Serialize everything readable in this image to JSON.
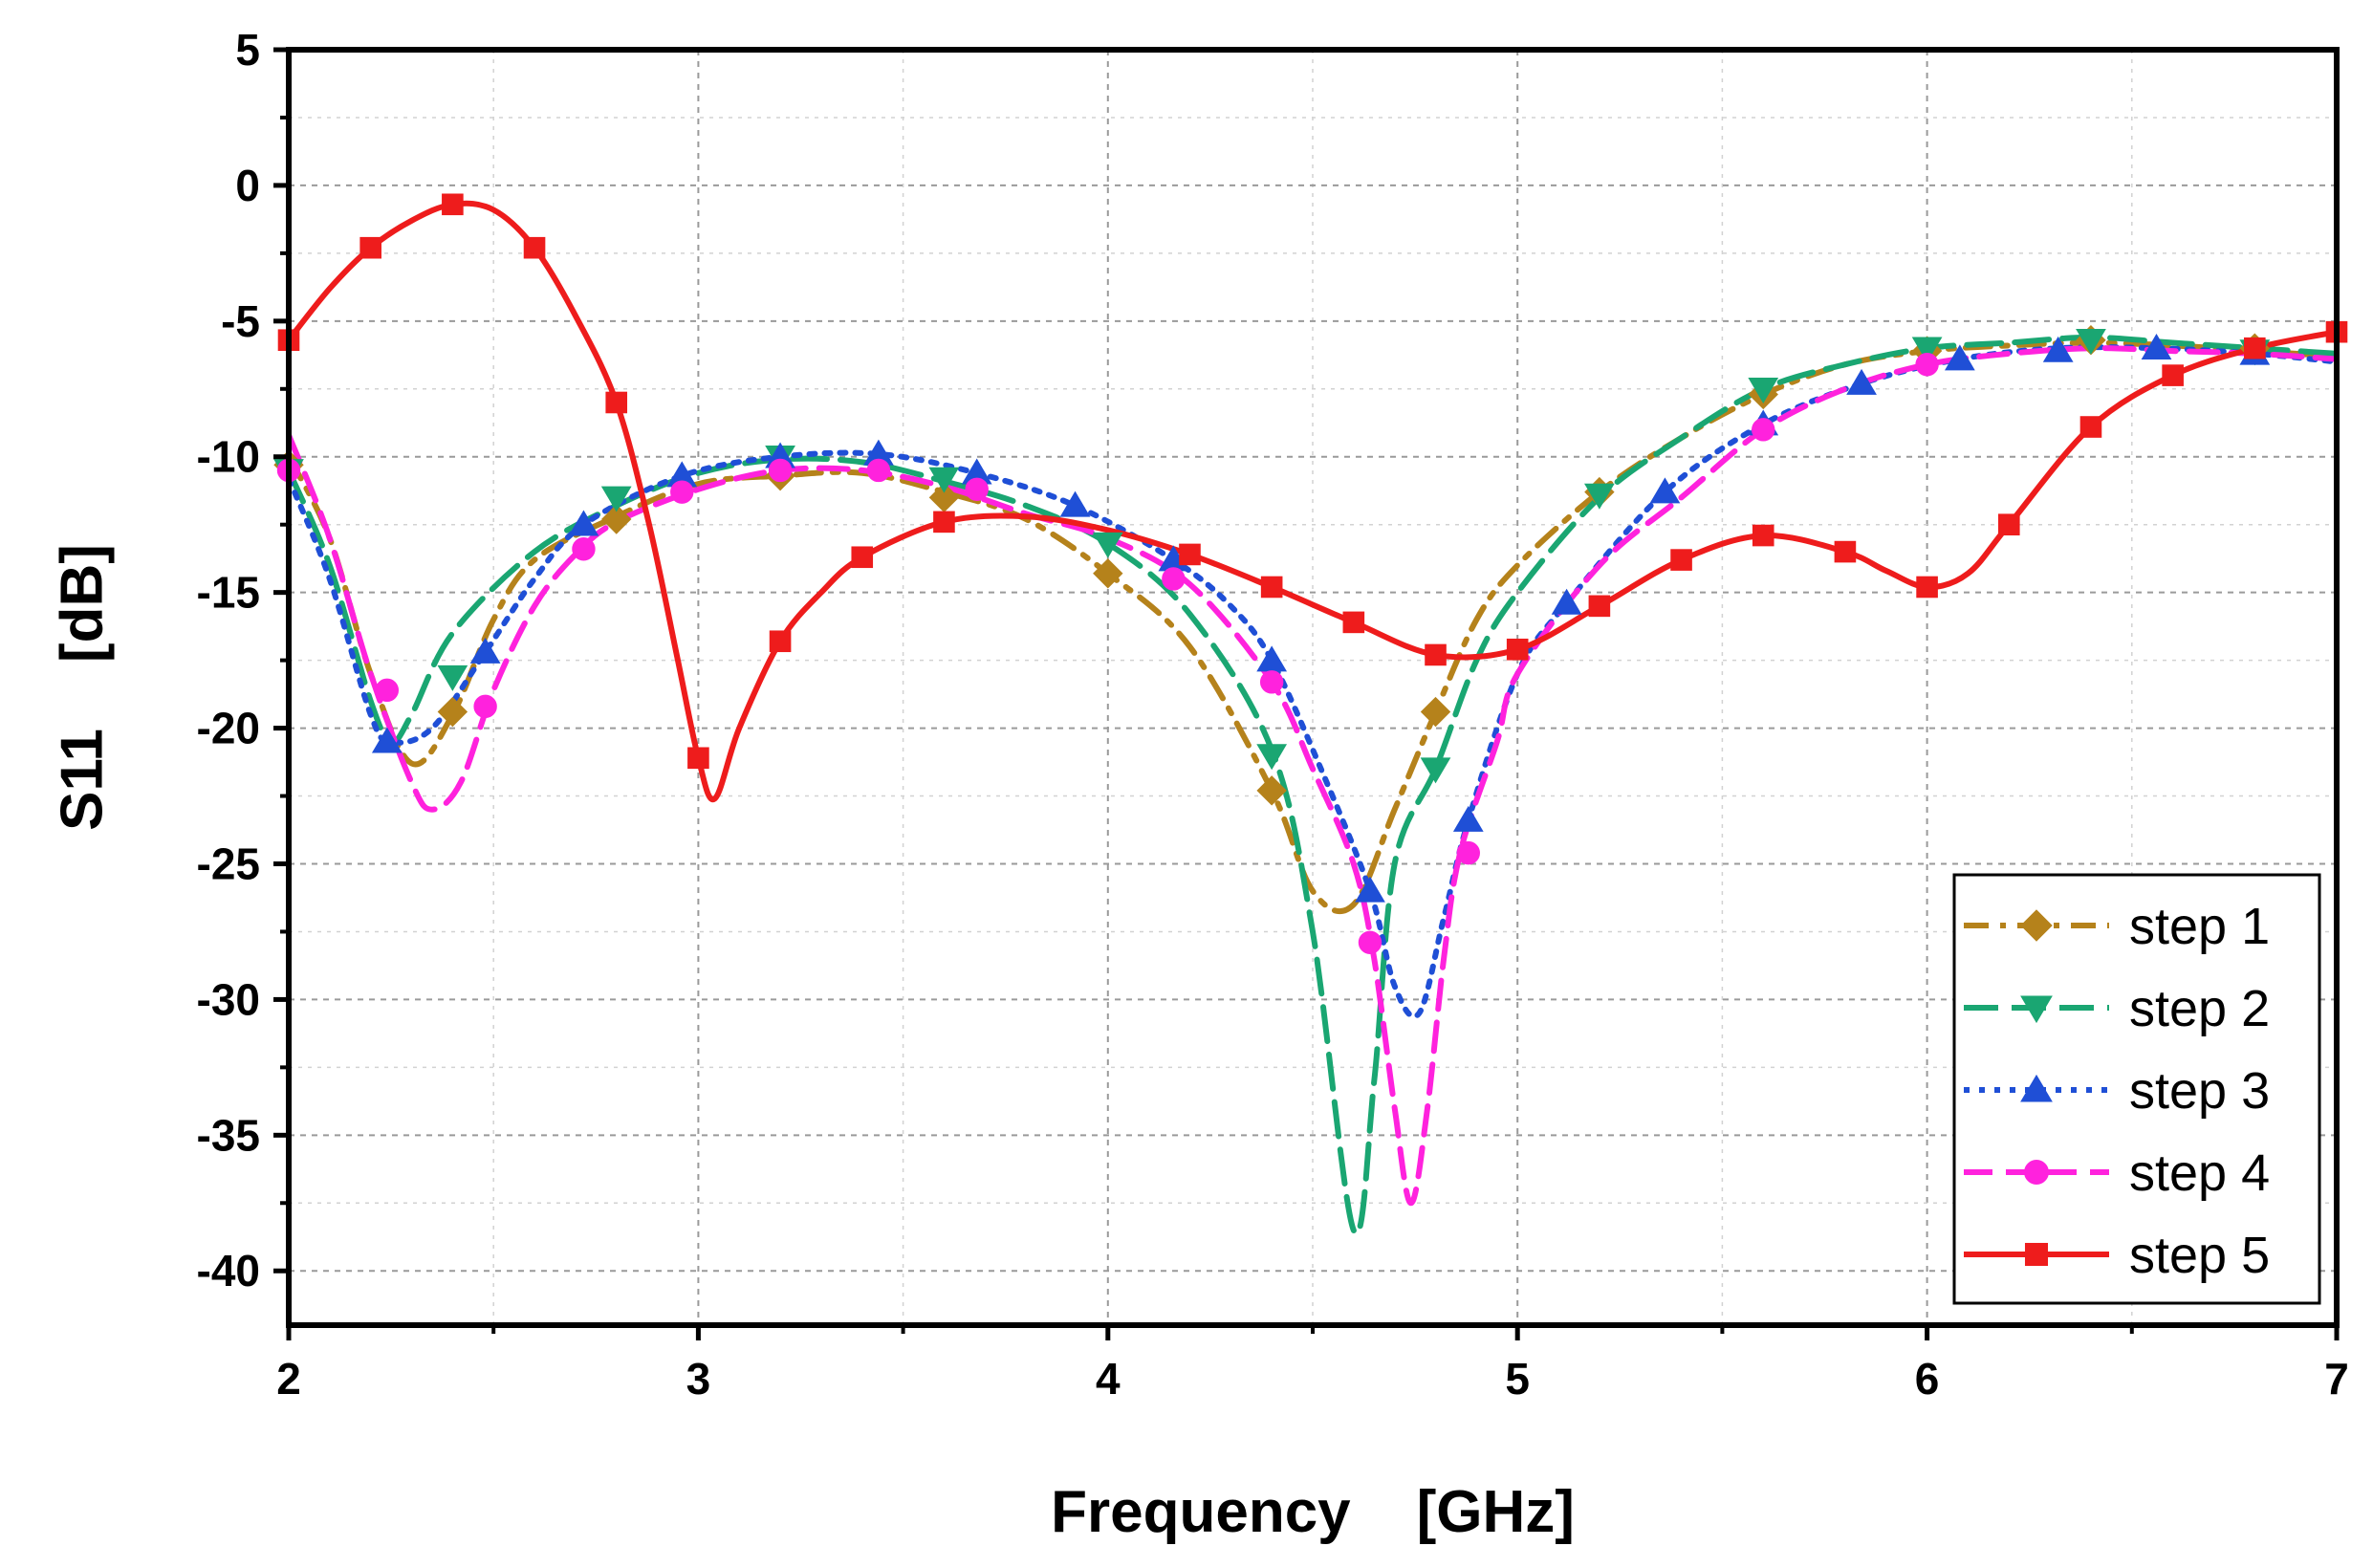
{
  "chart_data": {
    "type": "line",
    "title": "",
    "xlabel": "Frequency    [GHz]",
    "ylabel": "S11    [dB]",
    "xlim": [
      2,
      7
    ],
    "ylim": [
      -42,
      5
    ],
    "xticks": [
      2,
      3,
      4,
      5,
      6,
      7
    ],
    "yticks": [
      5,
      0,
      -5,
      -10,
      -15,
      -20,
      -25,
      -30,
      -35,
      -40
    ],
    "grid": true,
    "legend_position": "bottom-right",
    "series": [
      {
        "name": "step 1",
        "color": "#b5821b",
        "line_style": "dash-dot",
        "marker": "diamond",
        "curve": [
          [
            2.0,
            -10.0
          ],
          [
            2.1,
            -13.0
          ],
          [
            2.2,
            -18.0
          ],
          [
            2.3,
            -21.3
          ],
          [
            2.4,
            -19.5
          ],
          [
            2.5,
            -16.0
          ],
          [
            2.6,
            -13.8
          ],
          [
            2.8,
            -12.2
          ],
          [
            3.0,
            -11.0
          ],
          [
            3.2,
            -10.7
          ],
          [
            3.4,
            -10.6
          ],
          [
            3.6,
            -11.3
          ],
          [
            3.8,
            -12.3
          ],
          [
            4.0,
            -14.3
          ],
          [
            4.2,
            -17.0
          ],
          [
            4.4,
            -22.3
          ],
          [
            4.5,
            -26.0
          ],
          [
            4.6,
            -26.5
          ],
          [
            4.7,
            -23.0
          ],
          [
            4.8,
            -19.4
          ],
          [
            4.9,
            -16.0
          ],
          [
            5.0,
            -14.0
          ],
          [
            5.2,
            -11.3
          ],
          [
            5.4,
            -9.3
          ],
          [
            5.6,
            -7.7
          ],
          [
            5.8,
            -6.6
          ],
          [
            6.0,
            -6.1
          ],
          [
            6.2,
            -5.9
          ],
          [
            6.4,
            -5.8
          ],
          [
            6.6,
            -5.9
          ],
          [
            6.8,
            -6.1
          ],
          [
            7.0,
            -6.3
          ]
        ],
        "markers": [
          [
            2.0,
            -10.3
          ],
          [
            2.4,
            -19.4
          ],
          [
            2.8,
            -12.3
          ],
          [
            3.2,
            -10.7
          ],
          [
            3.6,
            -11.5
          ],
          [
            4.0,
            -14.3
          ],
          [
            4.4,
            -22.3
          ],
          [
            4.8,
            -19.4
          ],
          [
            5.2,
            -11.3
          ],
          [
            5.6,
            -7.7
          ],
          [
            6.0,
            -6.1
          ],
          [
            6.4,
            -5.7
          ],
          [
            6.8,
            -6.0
          ]
        ]
      },
      {
        "name": "step 2",
        "color": "#1aa672",
        "line_style": "long-dash",
        "marker": "triangle-down",
        "curve": [
          [
            2.0,
            -10.5
          ],
          [
            2.1,
            -14.0
          ],
          [
            2.2,
            -19.0
          ],
          [
            2.25,
            -20.5
          ],
          [
            2.3,
            -19.5
          ],
          [
            2.4,
            -16.5
          ],
          [
            2.6,
            -13.5
          ],
          [
            2.8,
            -11.8
          ],
          [
            3.0,
            -10.6
          ],
          [
            3.2,
            -10.1
          ],
          [
            3.4,
            -10.2
          ],
          [
            3.6,
            -10.9
          ],
          [
            3.8,
            -11.8
          ],
          [
            4.0,
            -13.2
          ],
          [
            4.2,
            -15.8
          ],
          [
            4.4,
            -20.8
          ],
          [
            4.5,
            -27.5
          ],
          [
            4.6,
            -38.5
          ],
          [
            4.65,
            -33.0
          ],
          [
            4.7,
            -25.0
          ],
          [
            4.8,
            -21.5
          ],
          [
            4.9,
            -17.5
          ],
          [
            5.0,
            -15.0
          ],
          [
            5.2,
            -11.5
          ],
          [
            5.4,
            -9.3
          ],
          [
            5.6,
            -7.5
          ],
          [
            5.8,
            -6.6
          ],
          [
            6.0,
            -6.0
          ],
          [
            6.2,
            -5.8
          ],
          [
            6.4,
            -5.6
          ],
          [
            6.6,
            -5.8
          ],
          [
            6.8,
            -6.0
          ],
          [
            7.0,
            -6.2
          ]
        ],
        "markers": [
          [
            2.0,
            -10.5
          ],
          [
            2.4,
            -18.1
          ],
          [
            2.8,
            -11.5
          ],
          [
            3.2,
            -10.0
          ],
          [
            3.6,
            -10.8
          ],
          [
            4.0,
            -13.2
          ],
          [
            4.4,
            -21.0
          ],
          [
            4.8,
            -21.5
          ],
          [
            5.2,
            -11.4
          ],
          [
            5.6,
            -7.5
          ],
          [
            6.0,
            -6.0
          ],
          [
            6.4,
            -5.7
          ],
          [
            6.8,
            -6.1
          ]
        ]
      },
      {
        "name": "step 3",
        "color": "#1f4fd6",
        "line_style": "dotted",
        "marker": "triangle-up",
        "curve": [
          [
            2.0,
            -10.8
          ],
          [
            2.1,
            -14.5
          ],
          [
            2.2,
            -19.5
          ],
          [
            2.25,
            -20.5
          ],
          [
            2.35,
            -20.0
          ],
          [
            2.48,
            -17.2
          ],
          [
            2.6,
            -14.5
          ],
          [
            2.72,
            -12.5
          ],
          [
            2.96,
            -10.7
          ],
          [
            3.2,
            -10.0
          ],
          [
            3.44,
            -9.9
          ],
          [
            3.68,
            -10.6
          ],
          [
            3.92,
            -11.8
          ],
          [
            4.16,
            -13.8
          ],
          [
            4.3,
            -15.5
          ],
          [
            4.4,
            -17.5
          ],
          [
            4.52,
            -21.5
          ],
          [
            4.64,
            -26.0
          ],
          [
            4.7,
            -29.5
          ],
          [
            4.76,
            -30.5
          ],
          [
            4.82,
            -27.0
          ],
          [
            4.88,
            -23.4
          ],
          [
            5.0,
            -18.0
          ],
          [
            5.12,
            -15.4
          ],
          [
            5.36,
            -11.3
          ],
          [
            5.6,
            -8.8
          ],
          [
            5.84,
            -7.3
          ],
          [
            6.08,
            -6.4
          ],
          [
            6.32,
            -6.0
          ],
          [
            6.56,
            -6.0
          ],
          [
            6.8,
            -6.2
          ],
          [
            7.0,
            -6.5
          ]
        ],
        "markers": [
          [
            2.24,
            -20.5
          ],
          [
            2.48,
            -17.2
          ],
          [
            2.72,
            -12.5
          ],
          [
            2.96,
            -10.7
          ],
          [
            3.2,
            -10.0
          ],
          [
            3.44,
            -9.9
          ],
          [
            3.68,
            -10.6
          ],
          [
            3.92,
            -11.8
          ],
          [
            4.16,
            -13.8
          ],
          [
            4.4,
            -17.5
          ],
          [
            4.64,
            -26.0
          ],
          [
            4.88,
            -23.4
          ],
          [
            5.12,
            -15.4
          ],
          [
            5.36,
            -11.3
          ],
          [
            5.6,
            -8.8
          ],
          [
            5.84,
            -7.3
          ],
          [
            6.08,
            -6.4
          ],
          [
            6.32,
            -6.1
          ],
          [
            6.56,
            -6.0
          ],
          [
            6.8,
            -6.2
          ]
        ]
      },
      {
        "name": "step 4",
        "color": "#ff22dd",
        "line_style": "dashed",
        "marker": "circle",
        "curve": [
          [
            2.0,
            -9.2
          ],
          [
            2.1,
            -13.0
          ],
          [
            2.2,
            -18.0
          ],
          [
            2.3,
            -22.0
          ],
          [
            2.35,
            -23.0
          ],
          [
            2.42,
            -22.0
          ],
          [
            2.5,
            -18.6
          ],
          [
            2.6,
            -15.5
          ],
          [
            2.7,
            -13.6
          ],
          [
            2.8,
            -12.4
          ],
          [
            3.0,
            -11.2
          ],
          [
            3.2,
            -10.5
          ],
          [
            3.4,
            -10.5
          ],
          [
            3.6,
            -11.1
          ],
          [
            3.8,
            -12.1
          ],
          [
            4.0,
            -13.0
          ],
          [
            4.2,
            -14.7
          ],
          [
            4.4,
            -18.3
          ],
          [
            4.5,
            -21.5
          ],
          [
            4.6,
            -25.0
          ],
          [
            4.65,
            -28.5
          ],
          [
            4.7,
            -34.0
          ],
          [
            4.74,
            -37.5
          ],
          [
            4.78,
            -34.0
          ],
          [
            4.82,
            -28.5
          ],
          [
            4.86,
            -24.6
          ],
          [
            4.95,
            -20.5
          ],
          [
            5.0,
            -18.0
          ],
          [
            5.2,
            -14.0
          ],
          [
            5.4,
            -11.5
          ],
          [
            5.6,
            -9.0
          ],
          [
            5.8,
            -7.5
          ],
          [
            6.0,
            -6.6
          ],
          [
            6.2,
            -6.2
          ],
          [
            6.4,
            -6.0
          ],
          [
            6.6,
            -6.1
          ],
          [
            6.8,
            -6.2
          ],
          [
            7.0,
            -6.4
          ]
        ],
        "markers": [
          [
            2.0,
            -10.5
          ],
          [
            2.24,
            -18.6
          ],
          [
            2.48,
            -19.2
          ],
          [
            2.72,
            -13.4
          ],
          [
            2.96,
            -11.3
          ],
          [
            3.2,
            -10.5
          ],
          [
            3.44,
            -10.5
          ],
          [
            3.68,
            -11.2
          ],
          [
            4.16,
            -14.5
          ],
          [
            4.4,
            -18.3
          ],
          [
            4.64,
            -27.9
          ],
          [
            4.88,
            -24.6
          ],
          [
            5.6,
            -9.0
          ],
          [
            6.0,
            -6.6
          ]
        ]
      },
      {
        "name": "step 5",
        "color": "#ee1c1c",
        "line_style": "solid",
        "marker": "square",
        "curve": [
          [
            2.0,
            -5.7
          ],
          [
            2.1,
            -3.8
          ],
          [
            2.2,
            -2.3
          ],
          [
            2.3,
            -1.3
          ],
          [
            2.4,
            -0.7
          ],
          [
            2.5,
            -0.9
          ],
          [
            2.6,
            -2.3
          ],
          [
            2.7,
            -4.8
          ],
          [
            2.8,
            -8.0
          ],
          [
            2.88,
            -12.5
          ],
          [
            2.95,
            -17.5
          ],
          [
            3.0,
            -21.1
          ],
          [
            3.04,
            -22.6
          ],
          [
            3.1,
            -20.0
          ],
          [
            3.2,
            -16.8
          ],
          [
            3.3,
            -15.0
          ],
          [
            3.4,
            -13.7
          ],
          [
            3.6,
            -12.4
          ],
          [
            3.8,
            -12.2
          ],
          [
            4.0,
            -12.7
          ],
          [
            4.2,
            -13.6
          ],
          [
            4.4,
            -14.8
          ],
          [
            4.6,
            -16.1
          ],
          [
            4.8,
            -17.3
          ],
          [
            5.0,
            -17.1
          ],
          [
            5.2,
            -15.5
          ],
          [
            5.4,
            -13.8
          ],
          [
            5.6,
            -12.9
          ],
          [
            5.8,
            -13.5
          ],
          [
            5.9,
            -14.2
          ],
          [
            6.0,
            -14.8
          ],
          [
            6.1,
            -14.3
          ],
          [
            6.2,
            -12.5
          ],
          [
            6.4,
            -8.9
          ],
          [
            6.6,
            -7.0
          ],
          [
            6.8,
            -6.0
          ],
          [
            7.0,
            -5.4
          ]
        ],
        "markers": [
          [
            2.0,
            -5.7
          ],
          [
            2.2,
            -2.3
          ],
          [
            2.4,
            -0.7
          ],
          [
            2.6,
            -2.3
          ],
          [
            2.8,
            -8.0
          ],
          [
            3.0,
            -21.1
          ],
          [
            3.2,
            -16.8
          ],
          [
            3.4,
            -13.7
          ],
          [
            3.6,
            -12.4
          ],
          [
            4.2,
            -13.6
          ],
          [
            4.4,
            -14.8
          ],
          [
            4.6,
            -16.1
          ],
          [
            4.8,
            -17.3
          ],
          [
            5.0,
            -17.1
          ],
          [
            5.2,
            -15.5
          ],
          [
            5.4,
            -13.8
          ],
          [
            5.6,
            -12.9
          ],
          [
            5.8,
            -13.5
          ],
          [
            6.0,
            -14.8
          ],
          [
            6.2,
            -12.5
          ],
          [
            6.4,
            -8.9
          ],
          [
            6.6,
            -7.0
          ],
          [
            6.8,
            -6.0
          ],
          [
            7.0,
            -5.4
          ]
        ]
      }
    ]
  }
}
